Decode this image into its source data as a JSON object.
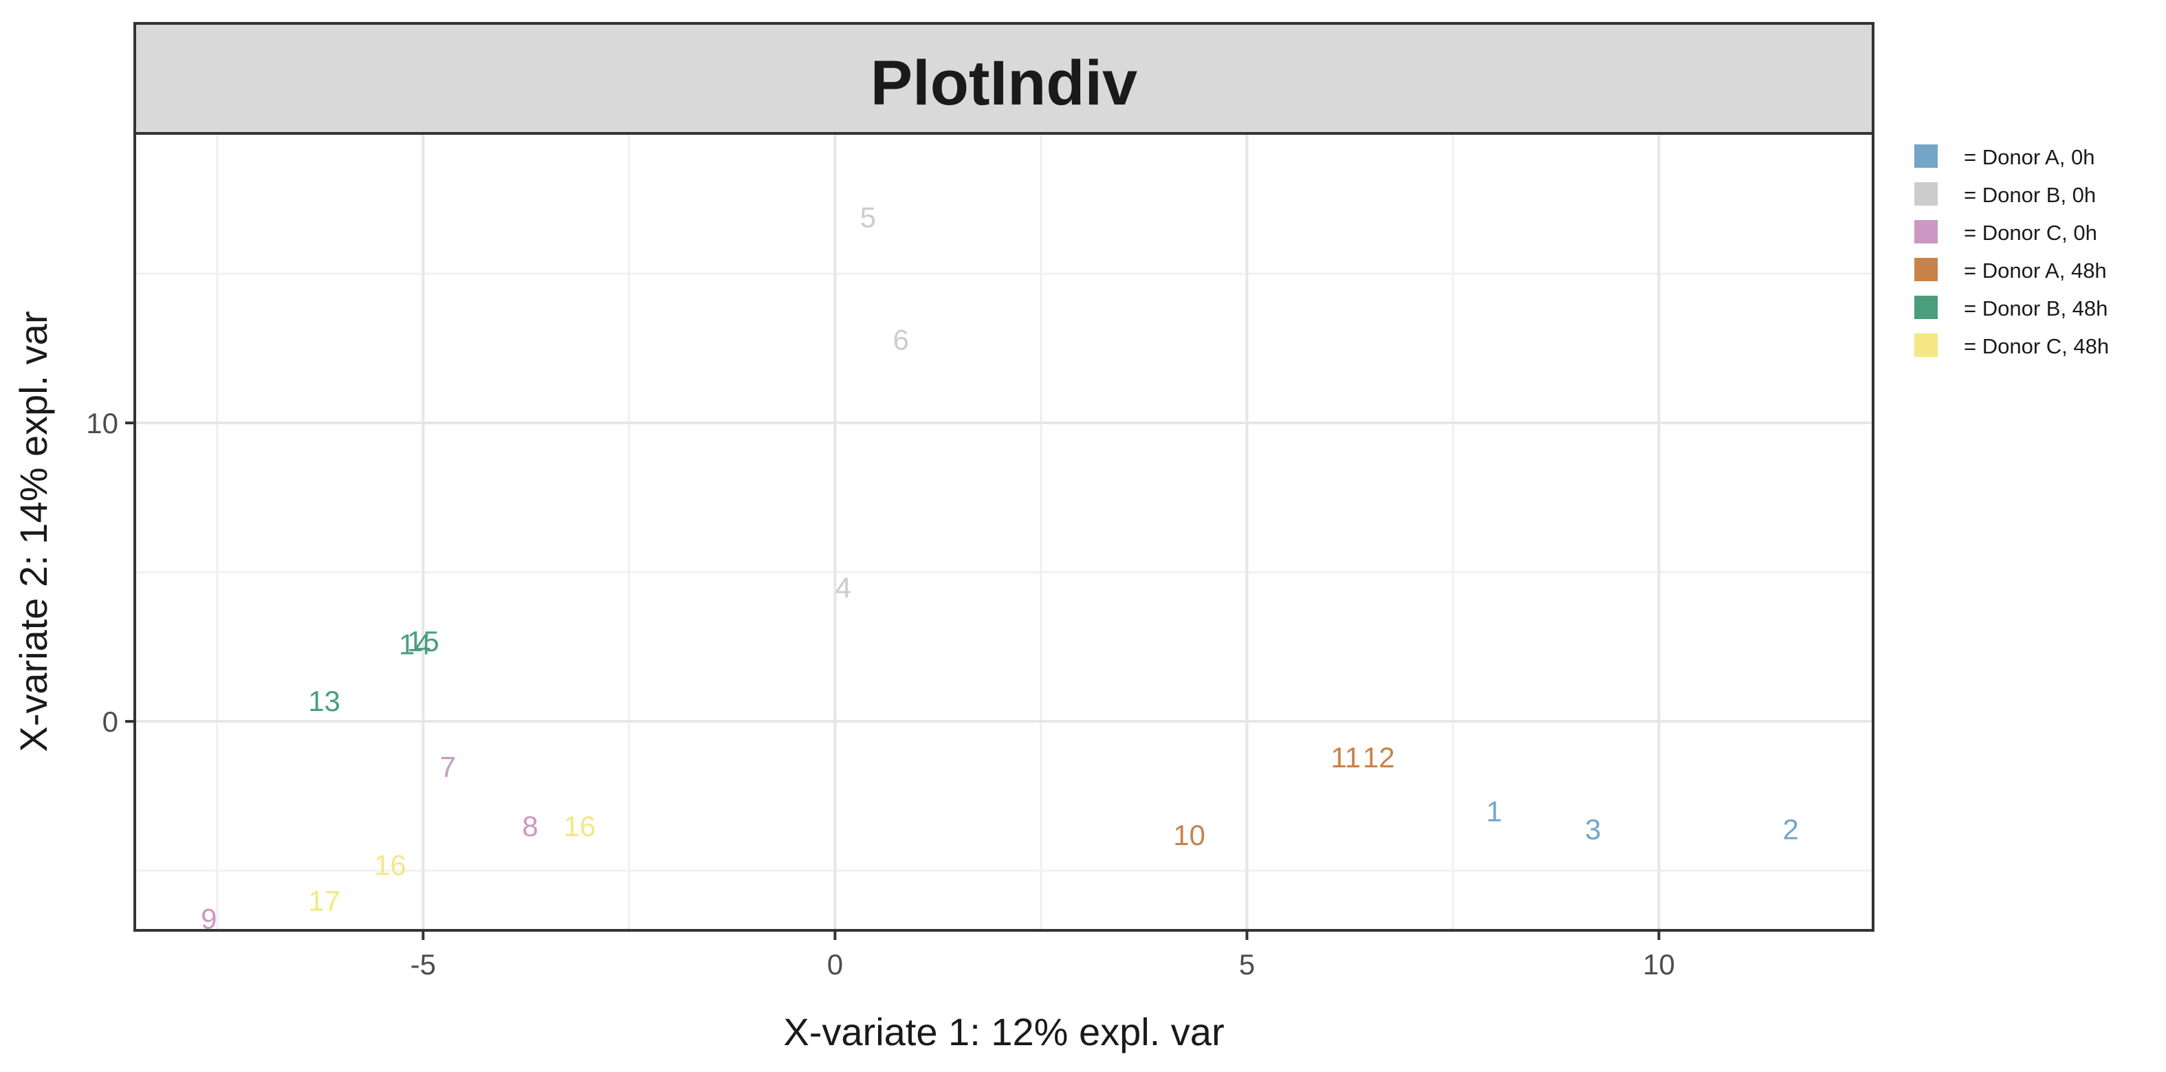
{
  "chart_data": {
    "type": "scatter",
    "title": "PlotIndiv",
    "xlabel": "X-variate 1: 12% expl. var",
    "ylabel": "X-variate 2: 14% expl. var",
    "xlim": [
      -8.5,
      12.6
    ],
    "ylim": [
      -7.0,
      19.7
    ],
    "x_ticks": [
      -5,
      0,
      5,
      10
    ],
    "x_tick_labels": [
      "-5",
      "0",
      "5",
      "10"
    ],
    "y_ticks": [
      0,
      10
    ],
    "y_tick_labels": [
      "0",
      "10"
    ],
    "x_minor_ticks": [
      -7.5,
      -2.5,
      2.5,
      7.5
    ],
    "y_minor_ticks": [
      -5,
      5,
      15
    ],
    "grid": true,
    "legend_position": "right",
    "groups": [
      {
        "name": "= Donor A, 0h",
        "color": "#73a5c9"
      },
      {
        "name": "= Donor B, 0h",
        "color": "#cccccc"
      },
      {
        "name": "= Donor C, 0h",
        "color": "#cb98c3"
      },
      {
        "name": "= Donor A, 48h",
        "color": "#c8834a"
      },
      {
        "name": "= Donor B, 48h",
        "color": "#4a9e7e"
      },
      {
        "name": "= Donor C, 48h",
        "color": "#f5e784"
      }
    ],
    "points": [
      {
        "label": "1",
        "x": 8.0,
        "y": -3.0,
        "group": 0
      },
      {
        "label": "3",
        "x": 9.2,
        "y": -3.6,
        "group": 0
      },
      {
        "label": "2",
        "x": 11.6,
        "y": -3.6,
        "group": 0
      },
      {
        "label": "5",
        "x": 0.4,
        "y": 16.9,
        "group": 1
      },
      {
        "label": "6",
        "x": 0.8,
        "y": 12.8,
        "group": 1
      },
      {
        "label": "4",
        "x": 0.1,
        "y": 4.5,
        "group": 1
      },
      {
        "label": "7",
        "x": -4.7,
        "y": -1.5,
        "group": 2
      },
      {
        "label": "8",
        "x": -3.7,
        "y": -3.5,
        "group": 2
      },
      {
        "label": "9",
        "x": -7.6,
        "y": -6.6,
        "group": 2
      },
      {
        "label": "10",
        "x": 4.3,
        "y": -3.8,
        "group": 3
      },
      {
        "label": "11",
        "x": 6.2,
        "y": -1.2,
        "group": 3
      },
      {
        "label": "12",
        "x": 6.6,
        "y": -1.2,
        "group": 3
      },
      {
        "label": "15",
        "x": -5.0,
        "y": 2.7,
        "group": 4
      },
      {
        "label": "14",
        "x": -5.1,
        "y": 2.6,
        "group": 4
      },
      {
        "label": "13",
        "x": -6.2,
        "y": 0.7,
        "group": 4
      },
      {
        "label": "16",
        "x": -3.1,
        "y": -3.5,
        "group": 5
      },
      {
        "label": "16",
        "x": -5.4,
        "y": -4.8,
        "group": 5
      },
      {
        "label": "17",
        "x": -6.2,
        "y": -6.0,
        "group": 5
      }
    ]
  }
}
